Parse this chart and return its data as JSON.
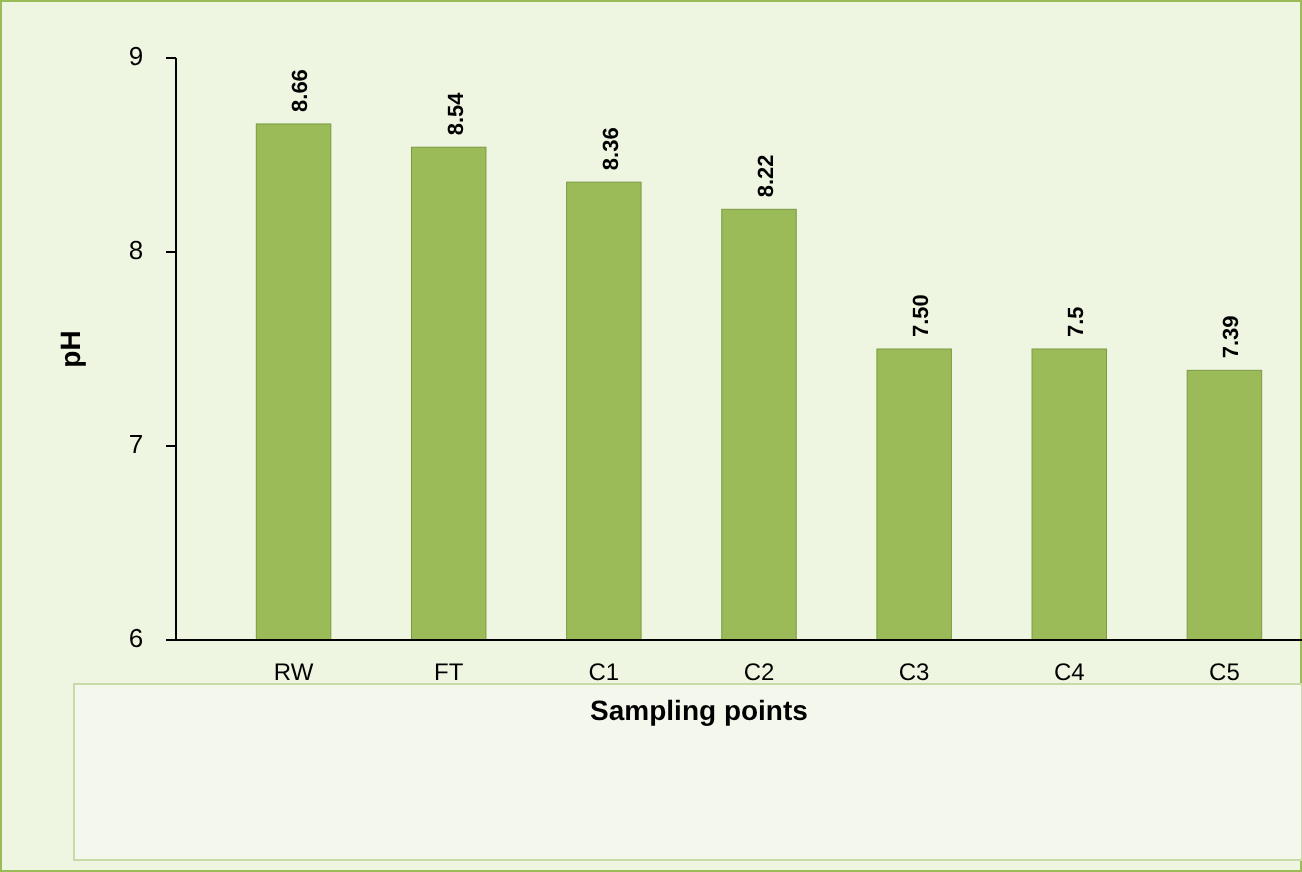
{
  "chart_data": {
    "type": "bar",
    "xlabel": "Sampling points",
    "ylabel": "pH",
    "categories": [
      "RW",
      "FT",
      "C1",
      "C2",
      "C3",
      "C4",
      "C5"
    ],
    "values": [
      8.66,
      8.54,
      8.36,
      8.22,
      7.5,
      7.5,
      7.39
    ],
    "value_labels": [
      "8.66",
      "8.54",
      "8.36",
      "8.22",
      "7.50",
      "7.5",
      "7.39"
    ],
    "color": "#9bbb59",
    "ylim": [
      6,
      9
    ],
    "yticks": [
      6,
      7,
      8,
      9
    ],
    "grid": false
  }
}
